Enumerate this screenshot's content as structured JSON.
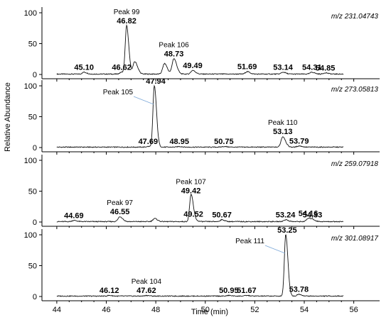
{
  "chart_data": {
    "type": "line",
    "xlabel": "Time (min)",
    "ylabel": "Relative Abundance",
    "xlim": [
      43.4,
      56.7
    ],
    "ylim": [
      0,
      100
    ],
    "x_ticks": [
      "44",
      "46",
      "48",
      "50",
      "52",
      "54",
      "56"
    ],
    "y_ticks": [
      "0",
      "50",
      "100"
    ],
    "grid": false,
    "panels": [
      {
        "mz": "m/z 231.04743",
        "peaks": [
          {
            "rt": 46.82,
            "y": 78,
            "label": "46.82",
            "name": "Peak 99"
          },
          {
            "rt": 48.73,
            "y": 25,
            "label": "48.73",
            "name": "Peak 106"
          }
        ],
        "minor": [
          {
            "rt": 45.1,
            "y": 3,
            "label": "45.10"
          },
          {
            "rt": 46.62,
            "y": 3,
            "label": "46.62"
          },
          {
            "rt": 47.15,
            "y": 20,
            "label": ""
          },
          {
            "rt": 48.35,
            "y": 17,
            "label": ""
          },
          {
            "rt": 49.49,
            "y": 6,
            "label": "49.49"
          },
          {
            "rt": 51.69,
            "y": 4,
            "label": "51.69"
          },
          {
            "rt": 53.14,
            "y": 3,
            "label": "53.14"
          },
          {
            "rt": 54.31,
            "y": 3,
            "label": "54.31"
          },
          {
            "rt": 54.85,
            "y": 2,
            "label": "54.85"
          }
        ]
      },
      {
        "mz": "m/z 273.05813",
        "peaks": [
          {
            "rt": 47.94,
            "y": 100,
            "label": "47.94",
            "name": "Peak 105"
          },
          {
            "rt": 53.13,
            "y": 17,
            "label": "53.13",
            "name": "Peak 110"
          }
        ],
        "minor": [
          {
            "rt": 47.69,
            "y": 1,
            "label": "47.69"
          },
          {
            "rt": 48.95,
            "y": 1,
            "label": "48.95"
          },
          {
            "rt": 50.75,
            "y": 1,
            "label": "50.75"
          },
          {
            "rt": 53.79,
            "y": 2,
            "label": "53.79"
          }
        ]
      },
      {
        "mz": "m/z 259.07918",
        "peaks": [
          {
            "rt": 46.55,
            "y": 8,
            "label": "46.55",
            "name": "Peak 97"
          },
          {
            "rt": 49.42,
            "y": 42,
            "label": "49.42",
            "name": "Peak 107"
          }
        ],
        "minor": [
          {
            "rt": 44.69,
            "y": 2,
            "label": "44.69"
          },
          {
            "rt": 47.95,
            "y": 5,
            "label": ""
          },
          {
            "rt": 49.52,
            "y": 4,
            "label": "49.52"
          },
          {
            "rt": 50.67,
            "y": 3,
            "label": "50.67"
          },
          {
            "rt": 53.24,
            "y": 3,
            "label": "53.24"
          },
          {
            "rt": 54.16,
            "y": 5,
            "label": "54.16"
          },
          {
            "rt": 54.33,
            "y": 3,
            "label": "54.33"
          }
        ]
      },
      {
        "mz": "m/z 301.08917",
        "peaks": [
          {
            "rt": 47.62,
            "y": 1,
            "label": "47.62",
            "name": "Peak 104"
          },
          {
            "rt": 53.25,
            "y": 100,
            "label": "53.25",
            "name": "Peak 111"
          }
        ],
        "minor": [
          {
            "rt": 46.12,
            "y": 1,
            "label": "46.12"
          },
          {
            "rt": 50.95,
            "y": 1,
            "label": "50.95"
          },
          {
            "rt": 51.67,
            "y": 1,
            "label": "51.67"
          },
          {
            "rt": 53.78,
            "y": 3,
            "label": "53.78"
          }
        ]
      }
    ]
  }
}
